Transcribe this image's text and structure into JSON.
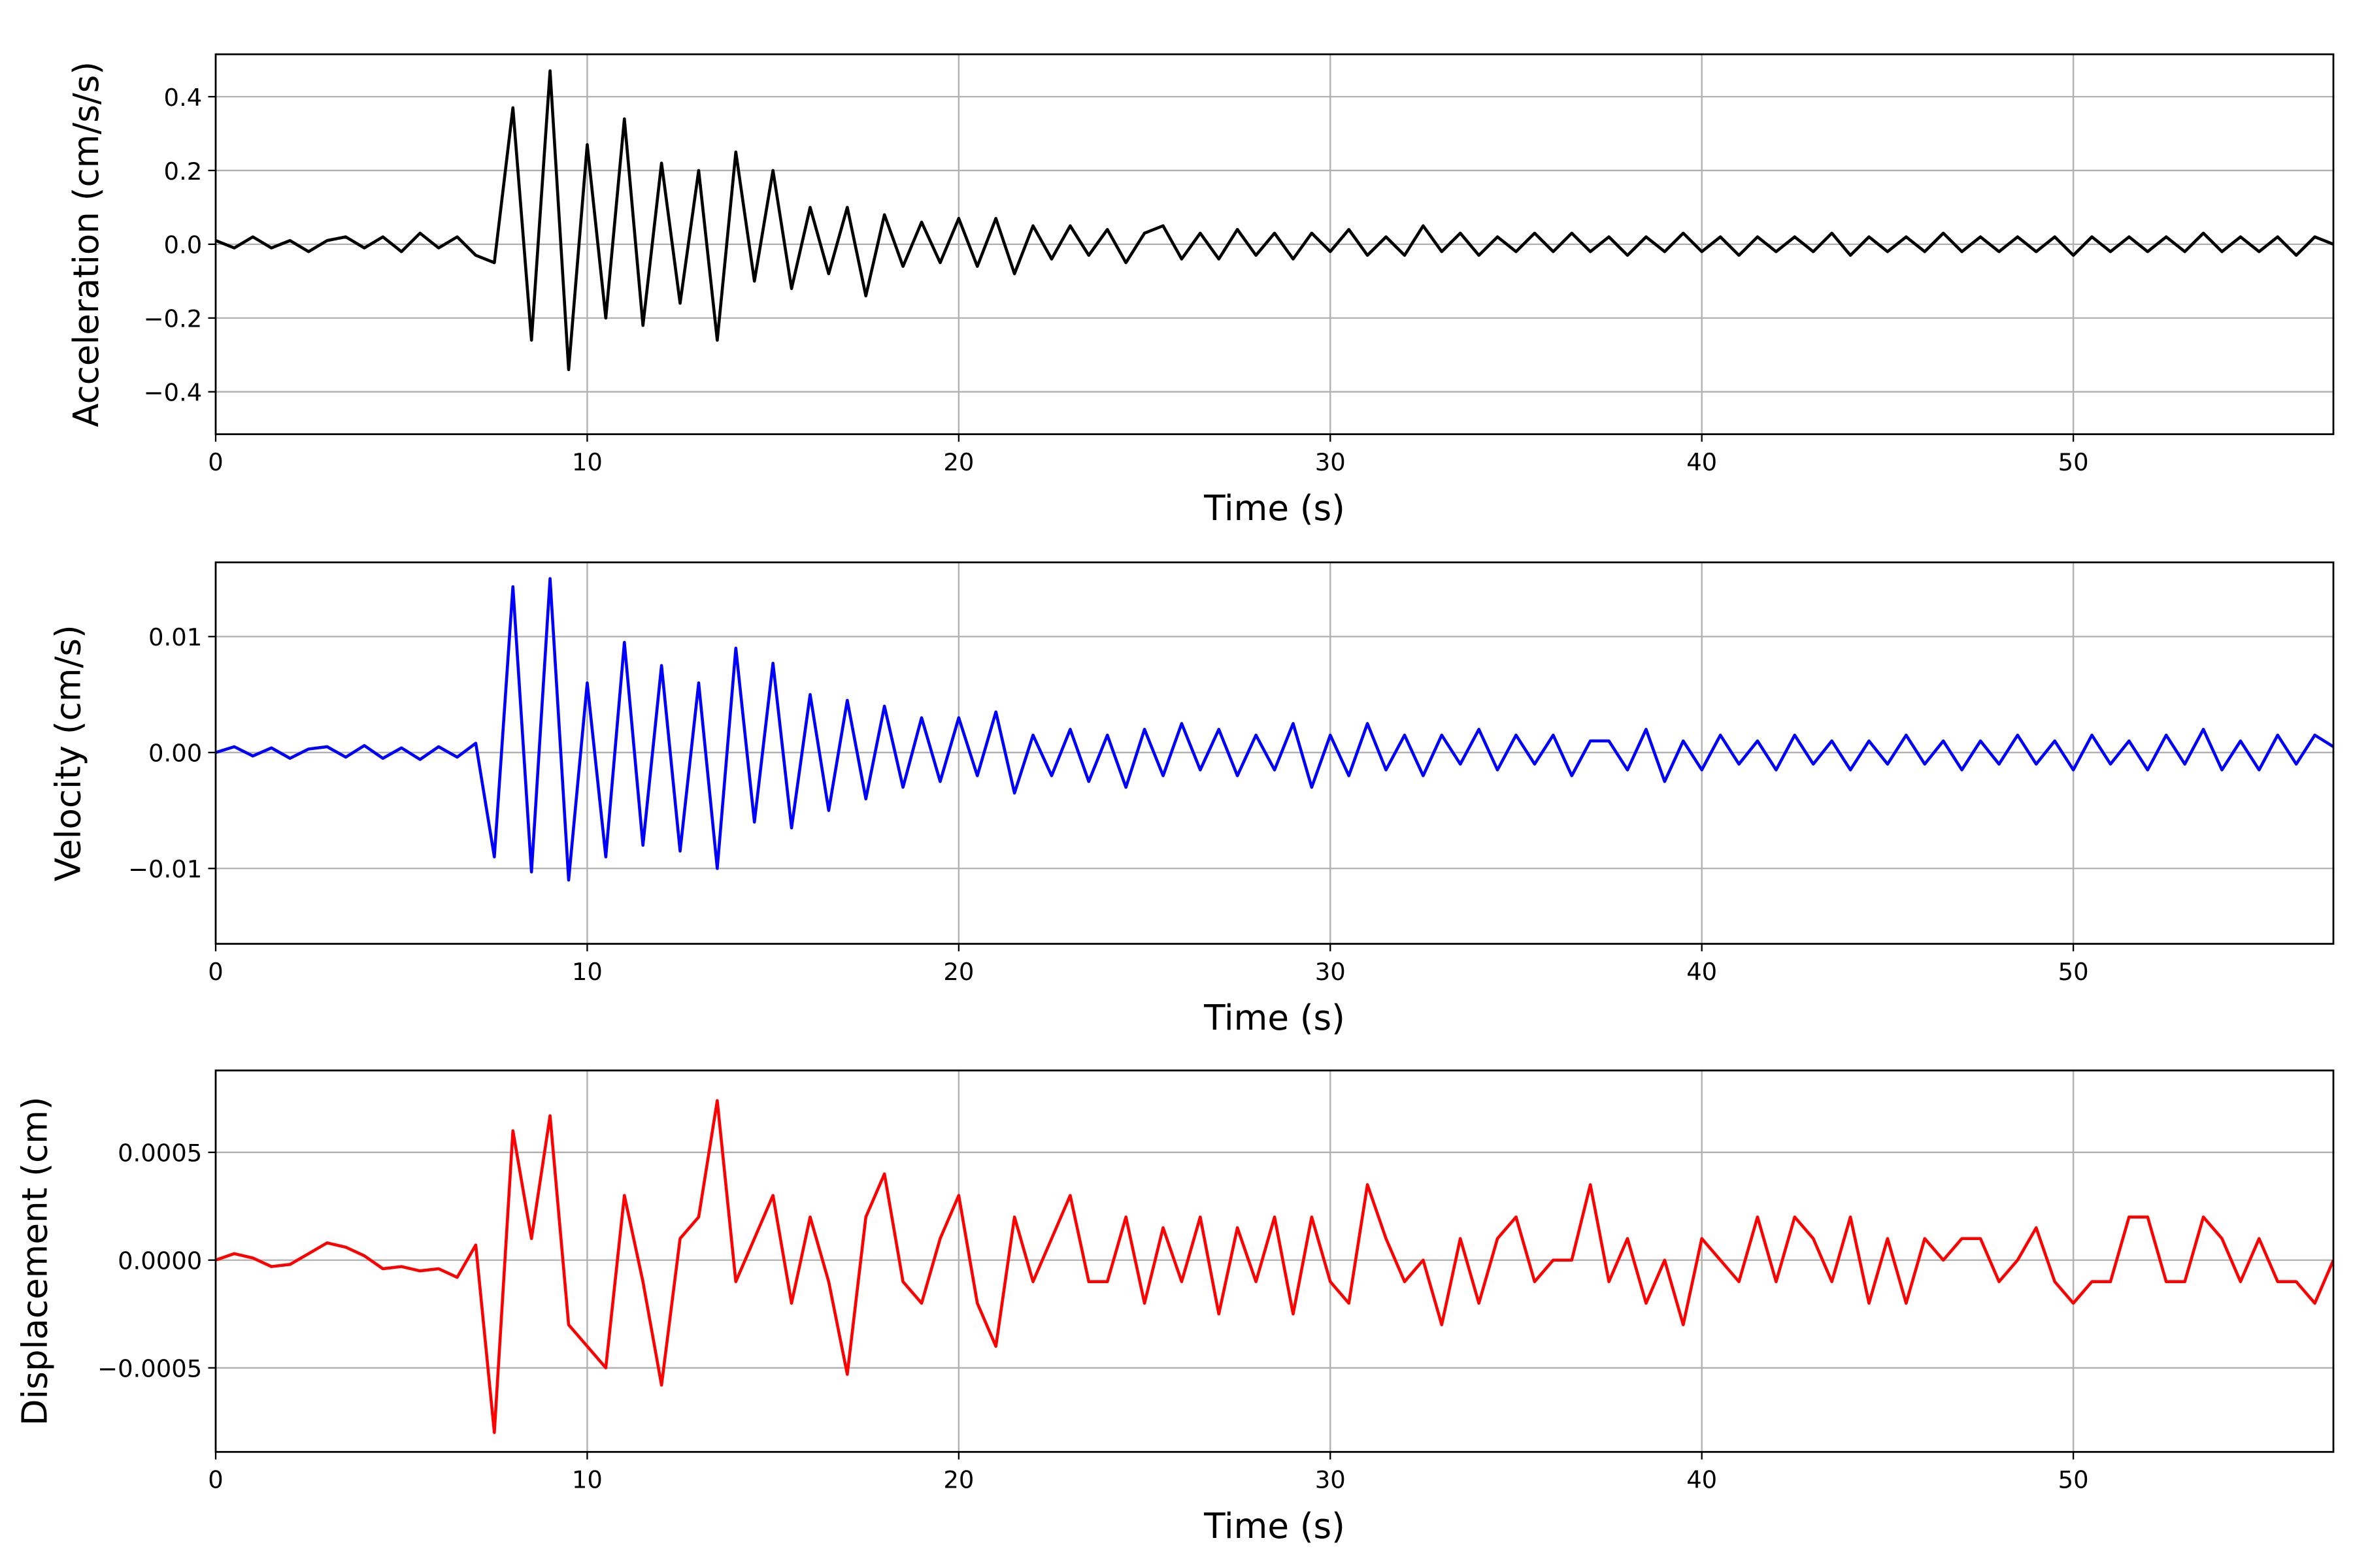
{
  "chart_data": [
    {
      "type": "line",
      "xlabel": "Time (s)",
      "ylabel": "Acceleration (cm/s/s)",
      "color": "#000000",
      "grid": true,
      "xlim": [
        0,
        57
      ],
      "xticks": [
        0,
        10,
        20,
        30,
        40,
        50
      ],
      "ylim": [
        -0.515,
        0.515
      ],
      "yticks": [
        {
          "value": -0.4,
          "label": "−0.4"
        },
        {
          "value": -0.2,
          "label": "−0.2"
        },
        {
          "value": 0,
          "label": "0.0"
        },
        0.2,
        0.4
      ],
      "x": [
        0,
        0.5,
        1,
        1.5,
        2,
        2.5,
        3,
        3.5,
        4,
        4.5,
        5,
        5.5,
        6,
        6.5,
        7,
        7.5,
        8,
        8.5,
        9,
        9.5,
        10,
        10.5,
        11,
        11.5,
        12,
        12.5,
        13,
        13.5,
        14,
        14.5,
        15,
        15.5,
        16,
        16.5,
        17,
        17.5,
        18,
        18.5,
        19,
        19.5,
        20,
        20.5,
        21,
        21.5,
        22,
        22.5,
        23,
        23.5,
        24,
        24.5,
        25,
        25.5,
        26,
        26.5,
        27,
        27.5,
        28,
        28.5,
        29,
        29.5,
        30,
        30.5,
        31,
        31.5,
        32,
        32.5,
        33,
        33.5,
        34,
        34.5,
        35,
        35.5,
        36,
        36.5,
        37,
        37.5,
        38,
        38.5,
        39,
        39.5,
        40,
        40.5,
        41,
        41.5,
        42,
        42.5,
        43,
        43.5,
        44,
        44.5,
        45,
        45.5,
        46,
        46.5,
        47,
        47.5,
        48,
        48.5,
        49,
        49.5,
        50,
        50.5,
        51,
        51.5,
        52,
        52.5,
        53,
        53.5,
        54,
        54.5,
        55,
        55.5,
        56,
        56.5,
        57
      ],
      "values": [
        0.01,
        -0.01,
        0.02,
        -0.01,
        0.01,
        -0.02,
        0.01,
        0.02,
        -0.01,
        0.02,
        -0.02,
        0.03,
        -0.01,
        0.02,
        -0.03,
        -0.05,
        0.37,
        -0.26,
        0.47,
        -0.34,
        0.27,
        -0.2,
        0.34,
        -0.22,
        0.22,
        -0.16,
        0.2,
        -0.26,
        0.25,
        -0.1,
        0.2,
        -0.12,
        0.1,
        -0.08,
        0.1,
        -0.14,
        0.08,
        -0.06,
        0.06,
        -0.05,
        0.07,
        -0.06,
        0.07,
        -0.08,
        0.05,
        -0.04,
        0.05,
        -0.03,
        0.04,
        -0.05,
        0.03,
        0.05,
        -0.04,
        0.03,
        -0.04,
        0.04,
        -0.03,
        0.03,
        -0.04,
        0.03,
        -0.02,
        0.04,
        -0.03,
        0.02,
        -0.03,
        0.05,
        -0.02,
        0.03,
        -0.03,
        0.02,
        -0.02,
        0.03,
        -0.02,
        0.03,
        -0.02,
        0.02,
        -0.03,
        0.02,
        -0.02,
        0.03,
        -0.02,
        0.02,
        -0.03,
        0.02,
        -0.02,
        0.02,
        -0.02,
        0.03,
        -0.03,
        0.02,
        -0.02,
        0.02,
        -0.02,
        0.03,
        -0.02,
        0.02,
        -0.02,
        0.02,
        -0.02,
        0.02,
        -0.03,
        0.02,
        -0.02,
        0.02,
        -0.02,
        0.02,
        -0.02,
        0.03,
        -0.02,
        0.02,
        -0.02,
        0.02,
        -0.03,
        0.02,
        0.0
      ]
    },
    {
      "type": "line",
      "xlabel": "Time (s)",
      "ylabel": "Velocity (cm/s)",
      "color": "#0000ff",
      "grid": true,
      "xlim": [
        0,
        57
      ],
      "xticks": [
        0,
        10,
        20,
        30,
        40,
        50
      ],
      "ylim": [
        -0.0165,
        0.0164
      ],
      "yticks": [
        {
          "value": -0.01,
          "label": "−0.01"
        },
        {
          "value": 0,
          "label": "0.00"
        },
        0.01
      ],
      "x": [
        0,
        0.5,
        1,
        1.5,
        2,
        2.5,
        3,
        3.5,
        4,
        4.5,
        5,
        5.5,
        6,
        6.5,
        7,
        7.5,
        8,
        8.5,
        9,
        9.5,
        10,
        10.5,
        11,
        11.5,
        12,
        12.5,
        13,
        13.5,
        14,
        14.5,
        15,
        15.5,
        16,
        16.5,
        17,
        17.5,
        18,
        18.5,
        19,
        19.5,
        20,
        20.5,
        21,
        21.5,
        22,
        22.5,
        23,
        23.5,
        24,
        24.5,
        25,
        25.5,
        26,
        26.5,
        27,
        27.5,
        28,
        28.5,
        29,
        29.5,
        30,
        30.5,
        31,
        31.5,
        32,
        32.5,
        33,
        33.5,
        34,
        34.5,
        35,
        35.5,
        36,
        36.5,
        37,
        37.5,
        38,
        38.5,
        39,
        39.5,
        40,
        40.5,
        41,
        41.5,
        42,
        42.5,
        43,
        43.5,
        44,
        44.5,
        45,
        45.5,
        46,
        46.5,
        47,
        47.5,
        48,
        48.5,
        49,
        49.5,
        50,
        50.5,
        51,
        51.5,
        52,
        52.5,
        53,
        53.5,
        54,
        54.5,
        55,
        55.5,
        56,
        56.5,
        57
      ],
      "values": [
        0,
        0.0005,
        -0.0003,
        0.0004,
        -0.0005,
        0.0003,
        0.0005,
        -0.0004,
        0.0006,
        -0.0005,
        0.0004,
        -0.0006,
        0.0005,
        -0.0004,
        0.0008,
        -0.009,
        0.0143,
        -0.0103,
        0.015,
        -0.011,
        0.006,
        -0.009,
        0.0095,
        -0.008,
        0.0075,
        -0.0085,
        0.006,
        -0.01,
        0.009,
        -0.006,
        0.0077,
        -0.0065,
        0.005,
        -0.005,
        0.0045,
        -0.004,
        0.004,
        -0.003,
        0.003,
        -0.0025,
        0.003,
        -0.002,
        0.0035,
        -0.0035,
        0.0015,
        -0.002,
        0.002,
        -0.0025,
        0.0015,
        -0.003,
        0.002,
        -0.002,
        0.0025,
        -0.0015,
        0.002,
        -0.002,
        0.0015,
        -0.0015,
        0.0025,
        -0.003,
        0.0015,
        -0.002,
        0.0025,
        -0.0015,
        0.0015,
        -0.002,
        0.0015,
        -0.001,
        0.002,
        -0.0015,
        0.0015,
        -0.001,
        0.0015,
        -0.002,
        0.001,
        0.001,
        -0.0015,
        0.002,
        -0.0025,
        0.001,
        -0.0015,
        0.0015,
        -0.001,
        0.001,
        -0.0015,
        0.0015,
        -0.001,
        0.001,
        -0.0015,
        0.001,
        -0.001,
        0.0015,
        -0.001,
        0.001,
        -0.0015,
        0.001,
        -0.001,
        0.0015,
        -0.001,
        0.001,
        -0.0015,
        0.0015,
        -0.001,
        0.001,
        -0.0015,
        0.0015,
        -0.001,
        0.002,
        -0.0015,
        0.001,
        -0.0015,
        0.0015,
        -0.001,
        0.0015,
        0.0005
      ]
    },
    {
      "type": "line",
      "xlabel": "Time (s)",
      "ylabel": "Displacement (cm)",
      "color": "#ff0000",
      "grid": true,
      "xlim": [
        0,
        57
      ],
      "xticks": [
        0,
        10,
        20,
        30,
        40,
        50
      ],
      "ylim": [
        -0.00089,
        0.00088
      ],
      "yticks": [
        {
          "value": -0.0005,
          "label": "−0.0005"
        },
        {
          "value": 0,
          "label": "0.0000"
        },
        0.0005
      ],
      "x": [
        0,
        0.5,
        1,
        1.5,
        2,
        2.5,
        3,
        3.5,
        4,
        4.5,
        5,
        5.5,
        6,
        6.5,
        7,
        7.5,
        8,
        8.5,
        9,
        9.5,
        10,
        10.5,
        11,
        11.5,
        12,
        12.5,
        13,
        13.5,
        14,
        14.5,
        15,
        15.5,
        16,
        16.5,
        17,
        17.5,
        18,
        18.5,
        19,
        19.5,
        20,
        20.5,
        21,
        21.5,
        22,
        22.5,
        23,
        23.5,
        24,
        24.5,
        25,
        25.5,
        26,
        26.5,
        27,
        27.5,
        28,
        28.5,
        29,
        29.5,
        30,
        30.5,
        31,
        31.5,
        32,
        32.5,
        33,
        33.5,
        34,
        34.5,
        35,
        35.5,
        36,
        36.5,
        37,
        37.5,
        38,
        38.5,
        39,
        39.5,
        40,
        40.5,
        41,
        41.5,
        42,
        42.5,
        43,
        43.5,
        44,
        44.5,
        45,
        45.5,
        46,
        46.5,
        47,
        47.5,
        48,
        48.5,
        49,
        49.5,
        50,
        50.5,
        51,
        51.5,
        52,
        52.5,
        53,
        53.5,
        54,
        54.5,
        55,
        55.5,
        56,
        56.5,
        57
      ],
      "values": [
        0,
        3e-05,
        1e-05,
        -3e-05,
        -2e-05,
        3e-05,
        8e-05,
        6e-05,
        2e-05,
        -4e-05,
        -3e-05,
        -5e-05,
        -4e-05,
        -8e-05,
        7e-05,
        -0.0008,
        0.0006,
        0.0001,
        0.00067,
        -0.0003,
        -0.0004,
        -0.0005,
        0.0003,
        -0.0001,
        -0.00058,
        0.0001,
        0.0002,
        0.00074,
        -0.0001,
        0.0001,
        0.0003,
        -0.0002,
        0.0002,
        -0.0001,
        -0.00053,
        0.0002,
        0.0004,
        -0.0001,
        -0.0002,
        0.0001,
        0.0003,
        -0.0002,
        -0.0004,
        0.0002,
        -0.0001,
        0.0001,
        0.0003,
        -0.0001,
        -0.0001,
        0.0002,
        -0.0002,
        0.00015,
        -0.0001,
        0.0002,
        -0.00025,
        0.00015,
        -0.0001,
        0.0002,
        -0.00025,
        0.0002,
        -0.0001,
        -0.0002,
        0.00035,
        0.0001,
        -0.0001,
        0.0,
        -0.0003,
        0.0001,
        -0.0002,
        0.0001,
        0.0002,
        -0.0001,
        0.0,
        0.0,
        0.00035,
        -0.0001,
        0.0001,
        -0.0002,
        0.0,
        -0.0003,
        0.0001,
        0.0,
        -0.0001,
        0.0002,
        -0.0001,
        0.0002,
        0.0001,
        -0.0001,
        0.0002,
        -0.0002,
        0.0001,
        -0.0002,
        0.0001,
        0.0,
        0.0001,
        0.0001,
        -0.0001,
        0.0,
        0.00015,
        -0.0001,
        -0.0002,
        -0.0001,
        -0.0001,
        0.0002,
        0.0002,
        -0.0001,
        -0.0001,
        0.0002,
        0.0001,
        -0.0001,
        0.0001,
        -0.0001,
        -0.0001,
        -0.0002,
        0.0
      ]
    }
  ]
}
